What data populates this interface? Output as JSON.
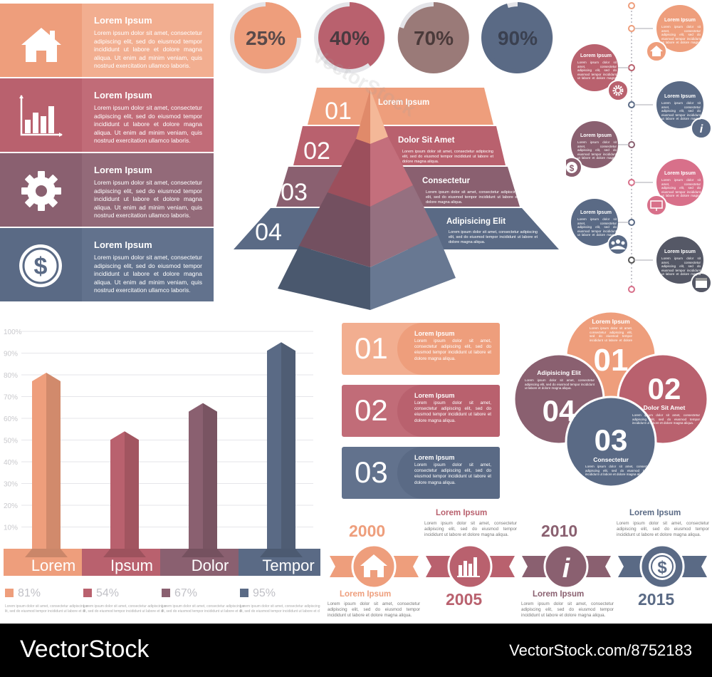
{
  "colors": {
    "peach": "#ee9e7c",
    "rose": "#b9616e",
    "mauve": "#8a6070",
    "slate": "#5a6a85",
    "pink": "#d8708a",
    "lightgray": "#e4e4e8"
  },
  "lorem_long": "Lorem ipsum dolor sit amet, consectetur adipiscing elit, sed do eiusmod tempor incididunt ut labore et dolore magna aliqua. Ut enim ad minim veniam, quis nostrud exercitation ullamco laboris.",
  "lorem_short": "Lorem ipsum dolor sit amet, consectetur adipiscing elit, sed do eiusmod tempor incididunt ut labore et dolore magna aliqua.",
  "left_banners": [
    {
      "title": "Lorem Ipsum",
      "icon": "home-icon"
    },
    {
      "title": "Lorem Ipsum",
      "icon": "bar-chart-icon"
    },
    {
      "title": "Lorem Ipsum",
      "icon": "gear-icon"
    },
    {
      "title": "Lorem Ipsum",
      "icon": "dollar-icon"
    }
  ],
  "percent_circles": [
    {
      "label": "25%",
      "value": 25
    },
    {
      "label": "40%",
      "value": 40
    },
    {
      "label": "70%",
      "value": 70
    },
    {
      "label": "90%",
      "value": 90
    }
  ],
  "pyramid": [
    {
      "num": "01",
      "label": "Lorem Ipsum"
    },
    {
      "num": "02",
      "label": "Dolor Sit Amet"
    },
    {
      "num": "03",
      "label": "Consectetur"
    },
    {
      "num": "04",
      "label": "Adipisicing Elit"
    }
  ],
  "timeline_title": "Lorem Ipsum",
  "timeline_icons": [
    "home-icon",
    "gear-icon",
    "info-icon",
    "dollar-icon",
    "monitor-icon",
    "people-icon",
    "calendar-icon"
  ],
  "bar_chart": {
    "type": "bar",
    "categories": [
      "Lorem",
      "Ipsum",
      "Dolor",
      "Tempor"
    ],
    "values": [
      81,
      54,
      67,
      95
    ],
    "value_labels": [
      "81%",
      "54%",
      "67%",
      "95%"
    ],
    "ylim": [
      0,
      100
    ],
    "yticks": [
      "10%",
      "20%",
      "30%",
      "40%",
      "50%",
      "60%",
      "70%",
      "80%",
      "90%",
      "100%"
    ]
  },
  "numbered_list": [
    {
      "num": "01",
      "title": "Lorem Ipsum"
    },
    {
      "num": "02",
      "title": "Lorem Ipsum"
    },
    {
      "num": "03",
      "title": "Lorem Ipsum"
    }
  ],
  "circles4": [
    {
      "num": "01",
      "label": "Lorem Ipsum"
    },
    {
      "num": "02",
      "label": "Dolor Sit Amet"
    },
    {
      "num": "03",
      "label": "Consectetur"
    },
    {
      "num": "04",
      "label": "Adipisicing Elit"
    }
  ],
  "ribbon_timeline": [
    {
      "year": "2000",
      "title": "Lorem Ipsum",
      "icon": "home-icon"
    },
    {
      "year": "2005",
      "title": "Lorem Ipsum",
      "icon": "bar-chart-icon"
    },
    {
      "year": "2010",
      "title": "Lorem Ipsum",
      "icon": "info-icon"
    },
    {
      "year": "2015",
      "title": "Lorem Ipsum",
      "icon": "dollar-icon"
    }
  ],
  "footer": {
    "brand": "VectorStock",
    "image_id": "VectorStock.com/8752183",
    "watermark": "VectorStock"
  }
}
